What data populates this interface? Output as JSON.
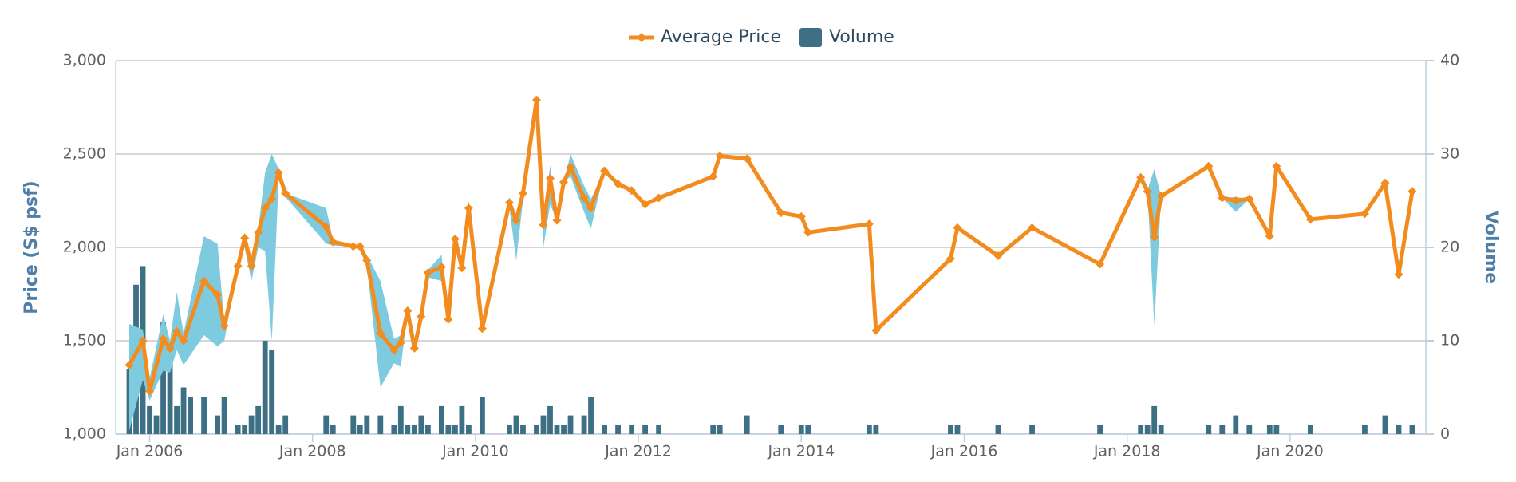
{
  "chart_data": {
    "type": "combo",
    "y_label": "Price (S$ psf)",
    "y2_label": "Volume",
    "xlim": [
      "2005-08",
      "2021-09"
    ],
    "xticks": [
      {
        "value": "2006-01",
        "label": "Jan 2006"
      },
      {
        "value": "2008-01",
        "label": "Jan 2008"
      },
      {
        "value": "2010-01",
        "label": "Jan 2010"
      },
      {
        "value": "2012-01",
        "label": "Jan 2012"
      },
      {
        "value": "2014-01",
        "label": "Jan 2014"
      },
      {
        "value": "2016-01",
        "label": "Jan 2016"
      },
      {
        "value": "2018-01",
        "label": "Jan 2018"
      },
      {
        "value": "2020-01",
        "label": "Jan 2020"
      }
    ],
    "ylim": [
      1000,
      3000
    ],
    "yticks": [
      {
        "value": 1000,
        "label": "1,000"
      },
      {
        "value": 1500,
        "label": "1,500"
      },
      {
        "value": 2000,
        "label": "2,000"
      },
      {
        "value": 2500,
        "label": "2,500"
      },
      {
        "value": 3000,
        "label": "3,000"
      }
    ],
    "y2lim": [
      0,
      40
    ],
    "y2ticks": [
      0,
      10,
      20,
      30,
      40
    ],
    "grid": true,
    "legend": "top",
    "series": [
      {
        "name": "Average Price",
        "type": "line",
        "color": "#f28c1e",
        "range_color": "#7ecbe0",
        "x": [
          "2005-10",
          "2005-12",
          "2006-01",
          "2006-03",
          "2006-04",
          "2006-05",
          "2006-06",
          "2006-09",
          "2006-11",
          "2006-12",
          "2007-02",
          "2007-03",
          "2007-04",
          "2007-05",
          "2007-06",
          "2007-07",
          "2007-08",
          "2007-09",
          "2008-03",
          "2008-04",
          "2008-07",
          "2008-08",
          "2008-09",
          "2008-11",
          "2009-01",
          "2009-02",
          "2009-03",
          "2009-04",
          "2009-05",
          "2009-06",
          "2009-08",
          "2009-09",
          "2009-10",
          "2009-11",
          "2009-12",
          "2010-02",
          "2010-06",
          "2010-07",
          "2010-08",
          "2010-10",
          "2010-11",
          "2010-12",
          "2011-01",
          "2011-02",
          "2011-03",
          "2011-05",
          "2011-06",
          "2011-08",
          "2011-10",
          "2011-12",
          "2012-02",
          "2012-04",
          "2012-12",
          "2013-01",
          "2013-05",
          "2013-10",
          "2014-01",
          "2014-02",
          "2014-11",
          "2014-12",
          "2015-11",
          "2015-12",
          "2016-06",
          "2016-11",
          "2017-09",
          "2018-03",
          "2018-04",
          "2018-05",
          "2018-06",
          "2019-01",
          "2019-03",
          "2019-05",
          "2019-07",
          "2019-10",
          "2019-11",
          "2020-04",
          "2020-12",
          "2021-03",
          "2021-05",
          "2021-07"
        ],
        "values": [
          1370,
          1500,
          1230,
          1510,
          1460,
          1550,
          1500,
          1820,
          1745,
          1580,
          1900,
          2050,
          1900,
          2080,
          2210,
          2260,
          2400,
          2290,
          2110,
          2030,
          2005,
          2005,
          1930,
          1540,
          1450,
          1490,
          1660,
          1460,
          1630,
          1865,
          1895,
          1615,
          2045,
          1890,
          2210,
          1565,
          2240,
          2145,
          2290,
          2790,
          2120,
          2370,
          2145,
          2350,
          2430,
          2265,
          2210,
          2410,
          2340,
          2305,
          2230,
          2265,
          2380,
          2490,
          2475,
          2185,
          2165,
          2080,
          2125,
          1555,
          1940,
          2105,
          1955,
          2105,
          1910,
          2375,
          2300,
          2055,
          2275,
          2435,
          2265,
          2250,
          2260,
          2060,
          2435,
          2150,
          2180,
          2345,
          1855,
          2300
        ],
        "low": [
          1020,
          1290,
          1180,
          1340,
          1330,
          1450,
          1370,
          1530,
          1470,
          1500,
          1900,
          2000,
          1820,
          2000,
          1980,
          1500,
          2360,
          2270,
          2020,
          2010,
          2005,
          2005,
          1900,
          1250,
          1380,
          1360,
          1660,
          1460,
          1630,
          1840,
          1820,
          1615,
          2000,
          1890,
          2140,
          1565,
          2210,
          1930,
          2250,
          2790,
          2000,
          2230,
          2145,
          2350,
          2380,
          2190,
          2100,
          2410,
          2340,
          2305,
          2230,
          2265,
          2380,
          2490,
          2475,
          2185,
          2165,
          2080,
          2125,
          1555,
          1940,
          2105,
          1955,
          2105,
          1910,
          2375,
          2290,
          1580,
          2275,
          2435,
          2265,
          2190,
          2260,
          2060,
          2435,
          2150,
          2180,
          2345,
          1855,
          2300
        ],
        "high": [
          1590,
          1560,
          1300,
          1640,
          1500,
          1760,
          1540,
          2060,
          2020,
          1600,
          1900,
          2080,
          1930,
          2100,
          2400,
          2500,
          2420,
          2290,
          2210,
          2040,
          2005,
          2005,
          1960,
          1820,
          1510,
          1530,
          1660,
          1460,
          1630,
          1880,
          1960,
          1615,
          2060,
          1890,
          2250,
          1565,
          2270,
          2160,
          2330,
          2790,
          2140,
          2440,
          2145,
          2350,
          2500,
          2330,
          2260,
          2410,
          2340,
          2305,
          2230,
          2265,
          2380,
          2500,
          2475,
          2185,
          2165,
          2080,
          2125,
          1555,
          1940,
          2105,
          1955,
          2105,
          1910,
          2375,
          2310,
          2420,
          2275,
          2435,
          2265,
          2270,
          2260,
          2060,
          2435,
          2150,
          2180,
          2345,
          1855,
          2300
        ]
      },
      {
        "name": "Volume",
        "type": "bar",
        "axis": "y2",
        "color": "#3d6f85",
        "x": [
          "2005-10",
          "2005-11",
          "2005-12",
          "2006-01",
          "2006-02",
          "2006-03",
          "2006-04",
          "2006-05",
          "2006-06",
          "2006-07",
          "2006-09",
          "2006-11",
          "2006-12",
          "2007-02",
          "2007-03",
          "2007-04",
          "2007-05",
          "2007-06",
          "2007-07",
          "2007-08",
          "2007-09",
          "2008-03",
          "2008-04",
          "2008-07",
          "2008-08",
          "2008-09",
          "2008-11",
          "2009-01",
          "2009-02",
          "2009-03",
          "2009-04",
          "2009-05",
          "2009-06",
          "2009-08",
          "2009-09",
          "2009-10",
          "2009-11",
          "2009-12",
          "2010-02",
          "2010-06",
          "2010-07",
          "2010-08",
          "2010-10",
          "2010-11",
          "2010-12",
          "2011-01",
          "2011-02",
          "2011-03",
          "2011-05",
          "2011-06",
          "2011-08",
          "2011-10",
          "2011-12",
          "2012-02",
          "2012-04",
          "2012-12",
          "2013-01",
          "2013-05",
          "2013-10",
          "2014-01",
          "2014-02",
          "2014-11",
          "2014-12",
          "2015-11",
          "2015-12",
          "2016-06",
          "2016-11",
          "2017-09",
          "2018-03",
          "2018-04",
          "2018-05",
          "2018-06",
          "2019-01",
          "2019-03",
          "2019-05",
          "2019-07",
          "2019-10",
          "2019-11",
          "2020-04",
          "2020-12",
          "2021-03",
          "2021-05",
          "2021-07"
        ],
        "values": [
          7,
          16,
          18,
          3,
          2,
          12,
          10,
          3,
          5,
          4,
          4,
          2,
          4,
          1,
          1,
          2,
          3,
          10,
          9,
          1,
          2,
          2,
          1,
          2,
          1,
          2,
          2,
          1,
          3,
          1,
          1,
          2,
          1,
          3,
          1,
          1,
          3,
          1,
          4,
          1,
          2,
          1,
          1,
          2,
          3,
          1,
          1,
          2,
          2,
          4,
          1,
          1,
          1,
          1,
          1,
          1,
          1,
          2,
          1,
          1,
          1,
          1,
          1,
          1,
          1,
          1,
          1,
          1,
          1,
          1,
          3,
          1,
          1,
          1,
          2,
          1,
          1,
          1,
          1,
          1,
          2,
          1,
          1
        ]
      }
    ]
  }
}
